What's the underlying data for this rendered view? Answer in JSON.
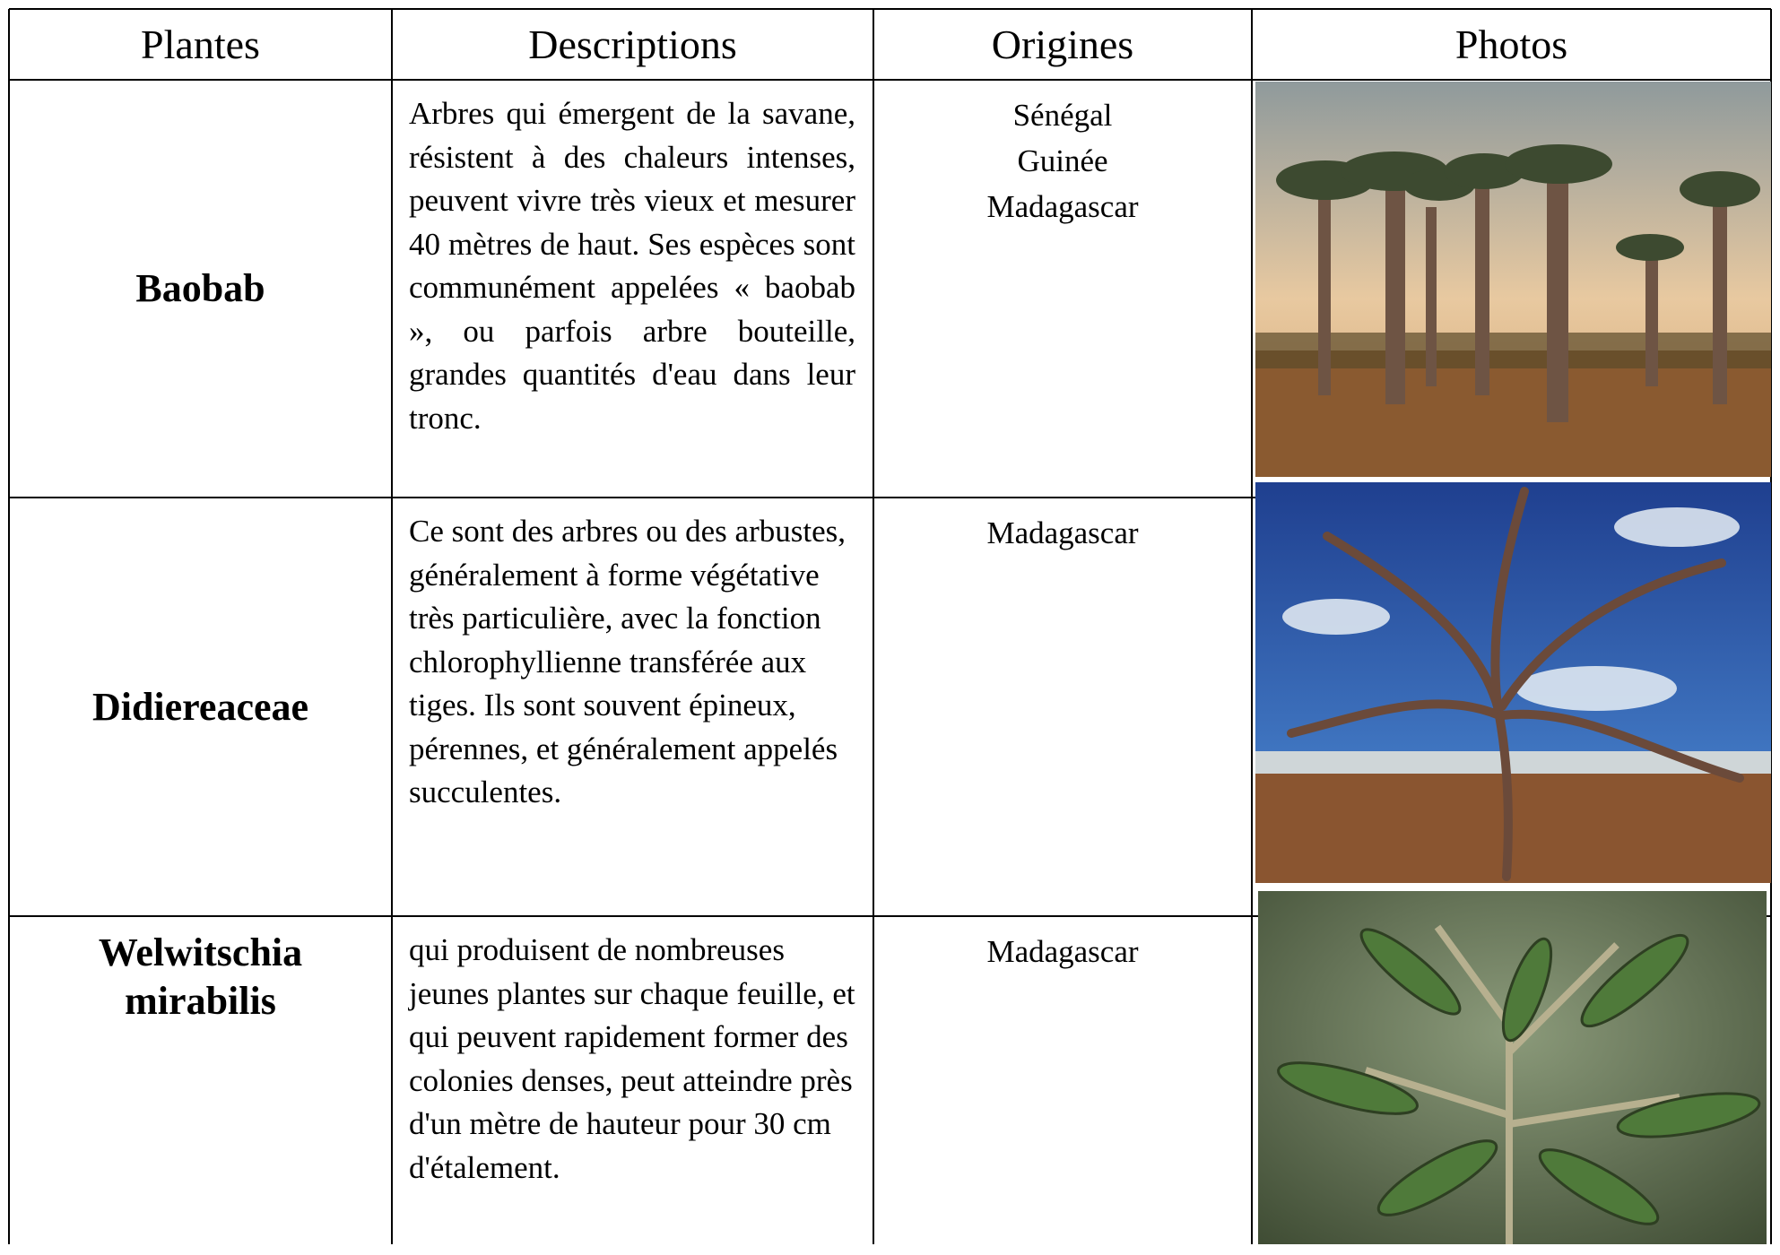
{
  "header": {
    "columns": [
      "Plantes",
      "Descriptions",
      "Origines",
      "Photos"
    ]
  },
  "rows": [
    {
      "plant": "Baobab",
      "description": "Arbres qui émergent de la savane, résistent à des chaleurs intenses, peuvent vivre très vieux et mesurer 40 mètres de haut. Ses espèces sont communément appelées « baobab », ou parfois arbre bouteille, grandes quantités d'eau dans leur tronc.",
      "origins": [
        "Sénégal",
        "Guinée",
        "Madagascar"
      ]
    },
    {
      "plant": "Didiereaceae",
      "description": "Ce sont des arbres ou des arbustes, généralement à forme végétative très particulière, avec la fonction chlorophyllienne transférée aux tiges. Ils sont souvent épineux, pérennes, et généralement appelés succulentes.",
      "origins": [
        "Madagascar"
      ]
    },
    {
      "plant": "Welwitschia mirabilis",
      "description": "qui produisent de nombreuses jeunes plantes sur chaque feuille, et qui peuvent rapidement former des colonies denses, peut atteindre près d'un mètre de hauteur pour 30 cm d'étalement.",
      "origins": [
        "Madagascar"
      ]
    }
  ]
}
